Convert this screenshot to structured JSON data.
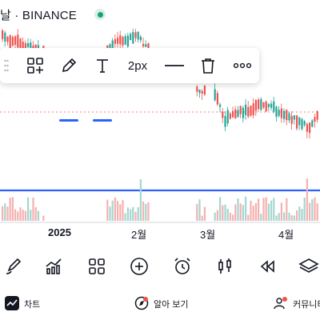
{
  "header": {
    "title": "날 · BINANCE",
    "status_color": "#19a17a"
  },
  "drawing_toolbar": {
    "items": [
      {
        "name": "templates-icon"
      },
      {
        "name": "pencil-icon",
        "selected": true
      },
      {
        "name": "text-icon",
        "selected": true
      },
      {
        "name": "line-width",
        "label": "2px"
      },
      {
        "name": "line-style-icon"
      },
      {
        "name": "trash-icon"
      },
      {
        "name": "more-icon"
      }
    ],
    "accent_color": "#2962ff"
  },
  "chart": {
    "up_color": "#26a69a",
    "down_color": "#ef5350",
    "volume_up_color": "#a5d6cf",
    "volume_down_color": "#f5b1b0",
    "drawn_line_color": "#2962ff",
    "x_axis_labels": [
      "2025",
      "2월",
      "3월",
      "4월"
    ]
  },
  "bottom_toolbar": {
    "icons": [
      "drawing-brush-icon",
      "indicators-icon",
      "layouts-icon",
      "add-icon",
      "alert-clock-icon",
      "candlestick-icon",
      "replay-icon",
      "layers-icon"
    ]
  },
  "tabs": [
    {
      "name": "chart",
      "label": "차트",
      "icon": "chart-icon"
    },
    {
      "name": "ideas",
      "label": "알아 보기",
      "icon": "explore-icon"
    },
    {
      "name": "community",
      "label": "커뮤니티",
      "icon": "community-icon"
    }
  ]
}
